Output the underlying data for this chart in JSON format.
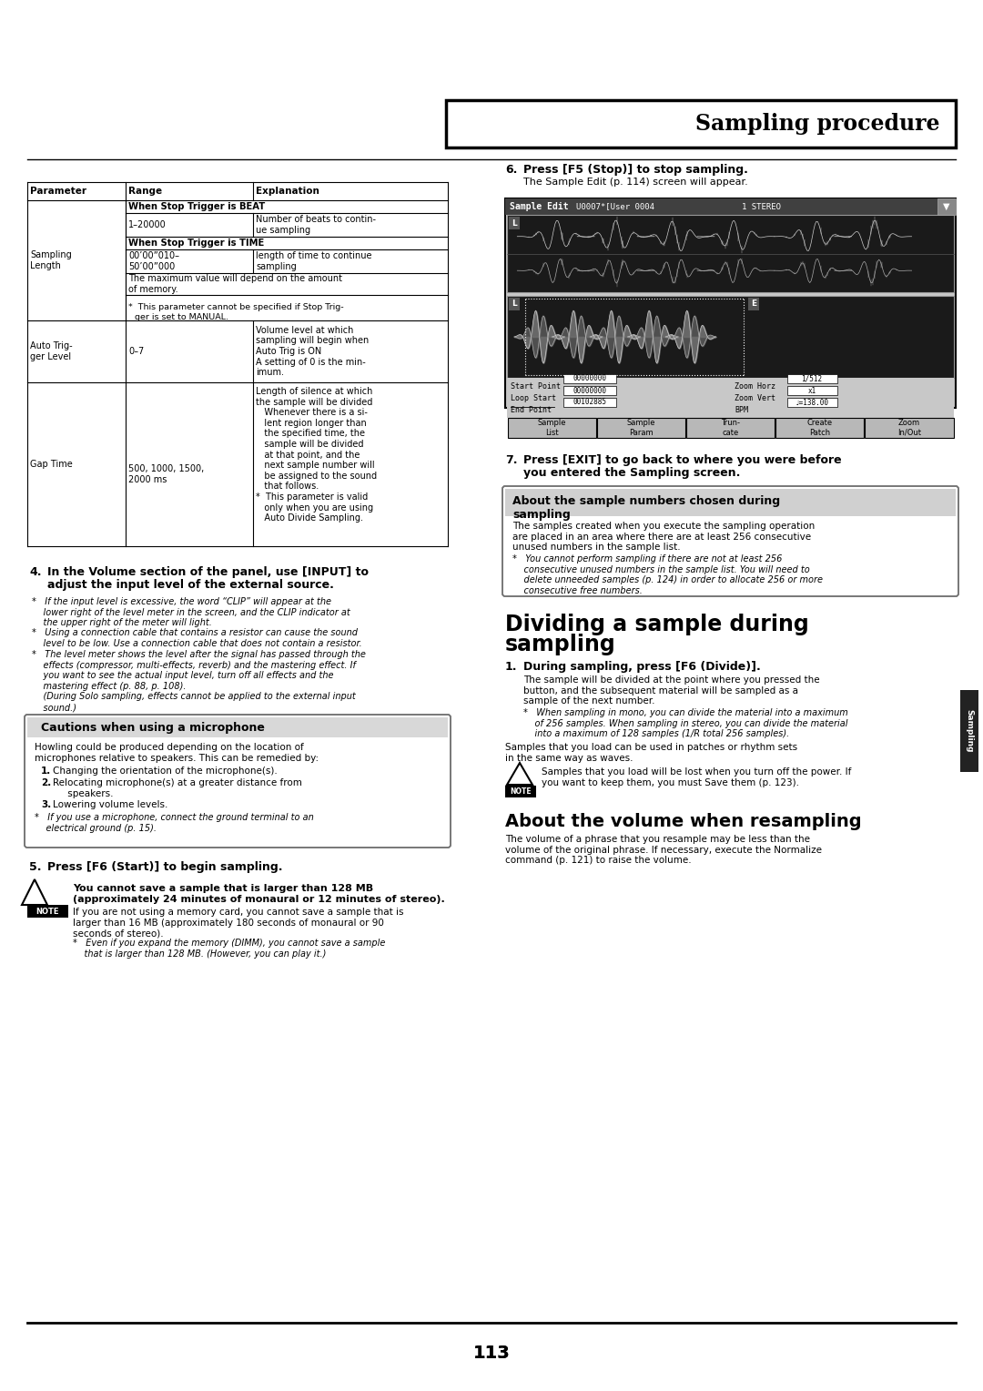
{
  "title": "Sampling procedure",
  "page_number": "113",
  "table_header_row": [
    "Parameter",
    "Range",
    "Explanation"
  ],
  "step4_line1": "4.   In the Volume section of the panel, use [INPUT] to",
  "step4_line2": "      adjust the input level of the external source.",
  "step4_note1": "*   If the input level is excessive, the word “CLIP” will appear at the\n    lower right of the level meter in the screen, and the CLIP indicator at\n    the upper right of the meter will light.",
  "step4_note2": "*   Using a connection cable that contains a resistor can cause the sound\n    level to be low. Use a connection cable that does not contain a resistor.",
  "step4_note3": "*   The level meter shows the level after the signal has passed through the\n    effects (compressor, multi-effects, reverb) and the mastering effect. If\n    you want to see the actual input level, turn off all effects and the\n    mastering effect (p. 88, p. 108).\n    (During Solo sampling, effects cannot be applied to the external input\n    sound.)",
  "caution_title": "Cautions when using a microphone",
  "caution_body": "Howling could be produced depending on the location of\nmicrophones relative to speakers. This can be remedied by:",
  "caution_items": [
    "1.   Changing the orientation of the microphone(s).",
    "2.   Relocating microphone(s) at a greater distance from\n      speakers.",
    "3.   Lowering volume levels."
  ],
  "caution_note": "*   If you use a microphone, connect the ground terminal to an\n    electrical ground (p. 15).",
  "step5": "5.   Press [F6 (Start)] to begin sampling.",
  "note_bold1": "You cannot save a sample that is larger than 128 MB",
  "note_bold2": "(approximately 24 minutes of monaural or 12 minutes of stereo).",
  "note_body": "If you are not using a memory card, you cannot save a sample that is\nlarger than 16 MB (approximately 180 seconds of monaural or 90\nseconds of stereo).",
  "note_italic": "*   Even if you expand the memory (DIMM), you cannot save a sample\n    that is larger than 128 MB. (However, you can play it.)",
  "step6": "6.   Press [F5 (Stop)] to stop sampling.",
  "step6_sub": "The Sample Edit (p. 114) screen will appear.",
  "screen_header": "Sample Edit",
  "screen_info": "U0007*[User 0004",
  "screen_stereo": "1 STEREO",
  "screen_labels": [
    "Start Point",
    "00000000",
    "Zoom Horz",
    "1/512",
    "Loop Start",
    "00000000",
    "Zoom Vert",
    "x1",
    "End Point",
    "00102885",
    "BPM",
    "♩=138.00"
  ],
  "btn_labels": [
    "Sample\nList",
    "Sample\nParam",
    "Trun-\ncate",
    "Create\nPatch",
    "Zoom\nIn/Out"
  ],
  "step7_line1": "7.   Press [EXIT] to go back to where you were before",
  "step7_line2": "      you entered the Sampling screen.",
  "sn_box_title": "About the sample numbers chosen during\nsampling",
  "sn_body": "The samples created when you execute the sampling operation\nare placed in an area where there are at least 256 consecutive\nunused numbers in the sample list.",
  "sn_note": "*   You cannot perform sampling if there are not at least 256\n    consecutive unused numbers in the sample list. You will need to\n    delete unneeded samples (p. 124) in order to allocate 256 or more\n    consecutive free numbers.",
  "div_title": "Dividing a sample during\nsampling",
  "div_step1": "1.   During sampling, press [F6 (Divide)].",
  "div_step1_body": "The sample will be divided at the point where you pressed the\nbutton, and the subsequent material will be sampled as a\nsample of the next number.",
  "div_step1_note": "*   When sampling in mono, you can divide the material into a maximum\n    of 256 samples. When sampling in stereo, you can divide the material\n    into a maximum of 128 samples (1/R total 256 samples).",
  "div_body": "Samples that you load can be used in patches or rhythm sets\nin the same way as waves.",
  "div_note": "Samples that you load will be lost when you turn off the power. If\nyou want to keep them, you must Save them (p. 123).",
  "vol_title": "About the volume when resampling",
  "vol_body": "The volume of a phrase that you resample may be less than the\nvolume of the original phrase. If necessary, execute the Normalize\ncommand (p. 121) to raise the volume.",
  "tab_label": "Sampling"
}
